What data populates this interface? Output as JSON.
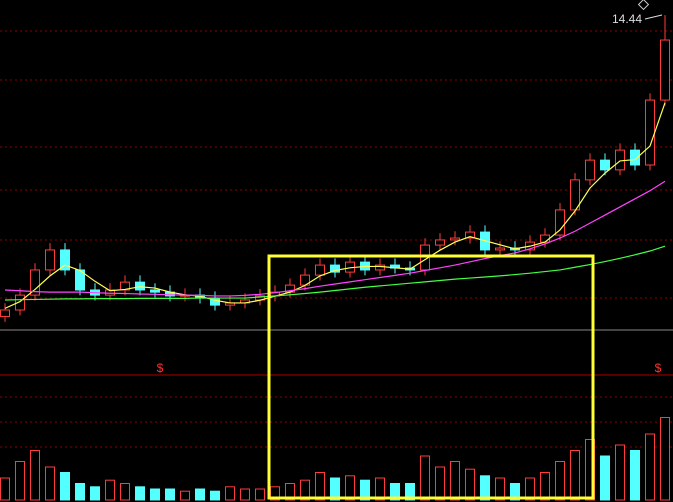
{
  "chart_data": {
    "type": "candlestick",
    "ylim": [
      2.8,
      15
    ],
    "vlim": [
      0,
      100
    ],
    "up_color": "#ff3c3c",
    "down_color": "#54ffff",
    "max_label": "14.44",
    "markers": [
      "$",
      "$"
    ],
    "open": [
      3.3,
      3.54,
      4.09,
      5.02,
      5.76,
      5.02,
      4.28,
      4.09,
      4.28,
      4.57,
      4.28,
      4.2,
      4.06,
      4.09,
      3.98,
      3.72,
      3.8,
      3.91,
      4.06,
      4.2,
      4.46,
      4.83,
      5.2,
      4.94,
      5.31,
      5.02,
      5.2,
      5.09,
      5.02,
      5.94,
      6.13,
      6.2,
      6.42,
      5.76,
      5.83,
      5.76,
      6.05,
      6.31,
      7.24,
      8.35,
      9.08,
      8.72,
      9.45,
      8.9,
      11.3
    ],
    "high": [
      3.79,
      4.34,
      5.27,
      6.01,
      6.01,
      5.27,
      4.53,
      4.53,
      4.82,
      4.82,
      4.53,
      4.45,
      4.34,
      4.34,
      4.23,
      4.05,
      4.16,
      4.31,
      4.45,
      4.71,
      5.08,
      5.45,
      5.45,
      5.56,
      5.56,
      5.45,
      5.45,
      5.34,
      6.19,
      6.38,
      6.45,
      6.67,
      6.67,
      6.08,
      6.08,
      6.3,
      6.56,
      7.49,
      8.6,
      9.33,
      9.33,
      9.7,
      9.7,
      11.55,
      14.44
    ],
    "low": [
      3.1,
      3.34,
      3.89,
      4.82,
      4.82,
      4.08,
      3.89,
      3.89,
      4.08,
      4.08,
      4.0,
      3.86,
      3.86,
      3.78,
      3.52,
      3.52,
      3.6,
      3.71,
      3.86,
      4.0,
      4.26,
      4.63,
      4.74,
      4.74,
      4.82,
      4.82,
      4.89,
      4.82,
      4.82,
      5.74,
      5.93,
      6.0,
      5.56,
      5.56,
      5.56,
      5.56,
      5.85,
      6.11,
      7.04,
      8.15,
      8.52,
      8.52,
      8.7,
      8.7,
      11.1
    ],
    "close": [
      3.54,
      4.09,
      5.02,
      5.76,
      5.02,
      4.28,
      4.09,
      4.28,
      4.57,
      4.28,
      4.2,
      4.06,
      4.09,
      3.98,
      3.72,
      3.8,
      3.91,
      4.06,
      4.2,
      4.46,
      4.83,
      5.2,
      4.94,
      5.31,
      5.02,
      5.2,
      5.09,
      5.02,
      5.94,
      6.13,
      6.2,
      6.42,
      5.76,
      5.83,
      5.76,
      6.05,
      6.31,
      7.24,
      8.35,
      9.08,
      8.72,
      9.45,
      8.9,
      11.3,
      13.52
    ],
    "volume": [
      20,
      35,
      45,
      30,
      25,
      15,
      12,
      18,
      15,
      12,
      10,
      10,
      8,
      10,
      8,
      12,
      10,
      10,
      12,
      15,
      18,
      25,
      20,
      22,
      18,
      20,
      15,
      15,
      40,
      30,
      35,
      28,
      22,
      20,
      15,
      20,
      25,
      35,
      45,
      55,
      40,
      50,
      45,
      60,
      75
    ],
    "ma": [
      {
        "color": "#ffff55",
        "values": [
          3.6,
          3.85,
          4.3,
          4.8,
          5.2,
          5.0,
          4.6,
          4.25,
          4.3,
          4.4,
          4.35,
          4.2,
          4.1,
          4.05,
          3.9,
          3.8,
          3.8,
          3.9,
          4.05,
          4.2,
          4.45,
          4.8,
          5.0,
          5.1,
          5.15,
          5.15,
          5.1,
          5.05,
          5.4,
          5.75,
          6.05,
          6.25,
          6.1,
          5.95,
          5.8,
          5.9,
          6.05,
          6.5,
          7.2,
          8.05,
          8.6,
          9.05,
          9.1,
          9.6,
          11.2
        ]
      },
      {
        "color": "#ff44ff",
        "values": [
          4.28,
          4.25,
          4.22,
          4.2,
          4.2,
          4.2,
          4.18,
          4.16,
          4.15,
          4.13,
          4.12,
          4.1,
          4.09,
          4.08,
          4.06,
          4.06,
          4.08,
          4.12,
          4.18,
          4.25,
          4.33,
          4.42,
          4.5,
          4.58,
          4.66,
          4.74,
          4.82,
          4.9,
          5.0,
          5.1,
          5.2,
          5.32,
          5.44,
          5.55,
          5.65,
          5.8,
          5.98,
          6.2,
          6.45,
          6.75,
          7.05,
          7.35,
          7.65,
          7.95,
          8.3
        ]
      },
      {
        "color": "#44ff44",
        "values": [
          3.91,
          3.92,
          3.93,
          3.94,
          3.95,
          3.95,
          3.96,
          3.96,
          3.96,
          3.97,
          3.97,
          3.97,
          3.97,
          3.98,
          3.98,
          3.98,
          3.98,
          4.02,
          4.06,
          4.1,
          4.15,
          4.2,
          4.26,
          4.32,
          4.38,
          4.43,
          4.48,
          4.53,
          4.58,
          4.63,
          4.68,
          4.72,
          4.76,
          4.8,
          4.85,
          4.9,
          4.96,
          5.02,
          5.12,
          5.22,
          5.33,
          5.45,
          5.58,
          5.72,
          5.9
        ]
      }
    ]
  }
}
